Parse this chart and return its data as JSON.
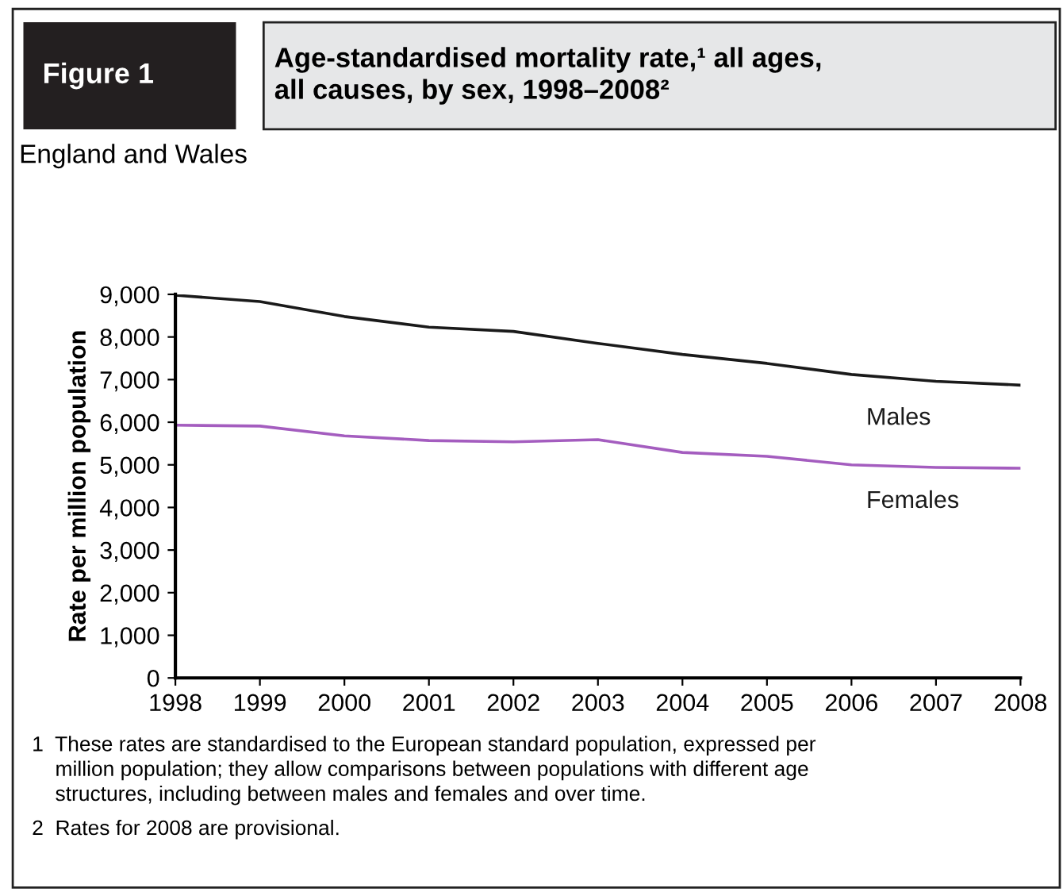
{
  "chart_data": {
    "type": "line",
    "title": "Age-standardised mortality rate,¹ all ages,\nall causes, by sex, 1998–2008²",
    "subtitle": "England and Wales",
    "ylabel": "Rate per million population",
    "x": [
      1998,
      1999,
      2000,
      2001,
      2002,
      2003,
      2004,
      2005,
      2006,
      2007,
      2008
    ],
    "xlim": [
      1998,
      2008
    ],
    "xticks": [
      1998,
      1999,
      2000,
      2001,
      2002,
      2003,
      2004,
      2005,
      2006,
      2007,
      2008
    ],
    "ylim": [
      0,
      9000
    ],
    "yticks": [
      {
        "value": 0,
        "label": "0"
      },
      {
        "value": 1000,
        "label": "1,000"
      },
      {
        "value": 2000,
        "label": "2,000"
      },
      {
        "value": 3000,
        "label": "3,000"
      },
      {
        "value": 4000,
        "label": "4,000"
      },
      {
        "value": 5000,
        "label": "5,000"
      },
      {
        "value": 6000,
        "label": "6,000"
      },
      {
        "value": 7000,
        "label": "7,000"
      },
      {
        "value": 8000,
        "label": "8,000"
      },
      {
        "value": 9000,
        "label": "9,000"
      }
    ],
    "series": [
      {
        "name": "Males",
        "color": "#1a1a1a",
        "values": [
          8980,
          8830,
          8480,
          8230,
          8130,
          7850,
          7590,
          7380,
          7120,
          6960,
          6870
        ]
      },
      {
        "name": "Females",
        "color": "#a45dbf",
        "values": [
          5930,
          5910,
          5680,
          5570,
          5540,
          5590,
          5290,
          5200,
          5000,
          4940,
          4920
        ]
      }
    ],
    "annotations": [
      "Figure 1",
      "1  These rates are standardised to the European standard population, expressed per\n    million population; they allow comparisons between populations with different age\n    structures, including between males and females and over time.",
      "2  Rates for 2008 are provisional."
    ],
    "grid": false,
    "legend": false,
    "marker": "none",
    "line_style": "solid"
  }
}
